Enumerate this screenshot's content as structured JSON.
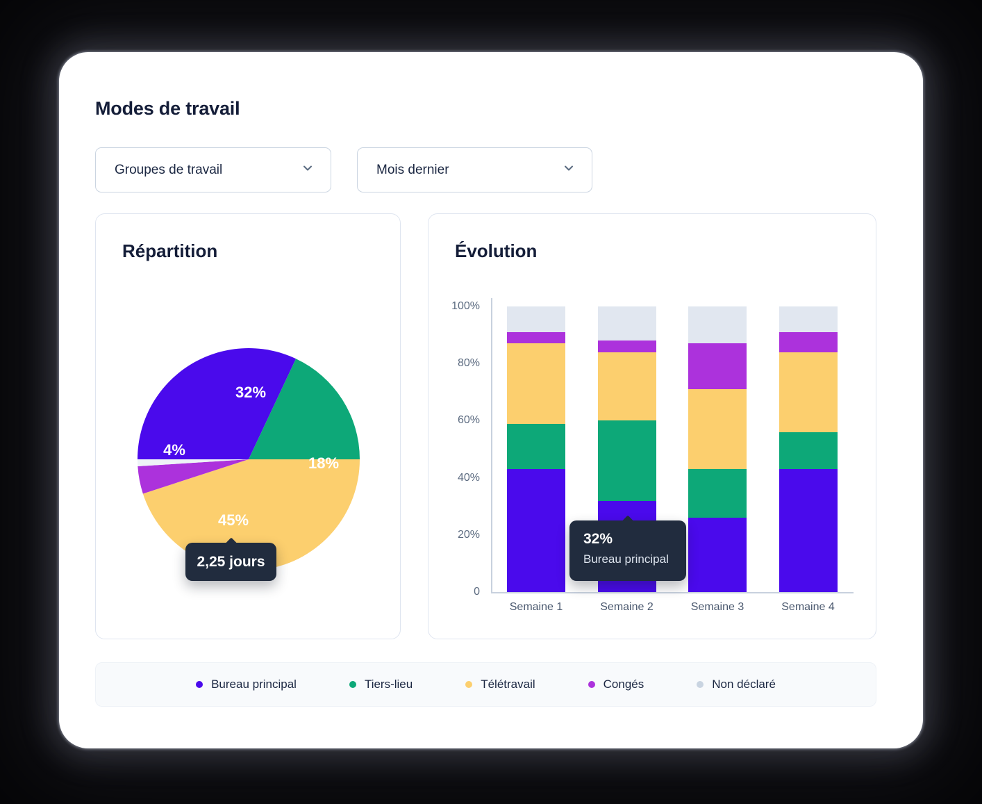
{
  "page": {
    "title": "Modes de travail"
  },
  "filters": {
    "group": {
      "value": "Groupes de travail"
    },
    "period": {
      "value": "Mois dernier"
    }
  },
  "colors": {
    "bureau_principal": "#4A0AEC",
    "tiers_lieu": "#0DA878",
    "teletravail": "#FCCF6E",
    "conges": "#AC32DC",
    "non_declare_bar": "#E1E7F0",
    "non_declare_pie": "#EEF3F7",
    "non_declare_dot": "#C9D4E1",
    "tooltip_bg": "#212C3E",
    "axis_text": "#5C6B80",
    "heading_text": "#141D38",
    "window_bg": "#FFFFFF",
    "page_bg": "#060608"
  },
  "chart_data": [
    {
      "type": "pie",
      "title": "Répartition",
      "labels": [
        "Bureau principal",
        "Tiers-lieu",
        "Télétravail",
        "Congés",
        "Non déclaré"
      ],
      "values": [
        32,
        18,
        45,
        4,
        1
      ],
      "display_labels": [
        "32%",
        "18%",
        "45%",
        "4%",
        ""
      ],
      "colors": [
        "#4A0AEC",
        "#0DA878",
        "#FCCF6E",
        "#AC32DC",
        "#EEF3F7"
      ],
      "start_angle_deg": 270,
      "direction": "clockwise",
      "tooltip": {
        "text": "2,25 jours"
      }
    },
    {
      "type": "bar",
      "stacked": true,
      "title": "Évolution",
      "categories": [
        "Semaine 1",
        "Semaine 2",
        "Semaine 3",
        "Semaine 4"
      ],
      "series": [
        {
          "name": "Bureau principal",
          "color": "#4A0AEC",
          "values": [
            43,
            32,
            26,
            43
          ]
        },
        {
          "name": "Tiers-lieu",
          "color": "#0DA878",
          "values": [
            16,
            28,
            17,
            13
          ]
        },
        {
          "name": "Télétravail",
          "color": "#FCCF6E",
          "values": [
            28,
            24,
            28,
            28
          ]
        },
        {
          "name": "Congés",
          "color": "#AC32DC",
          "values": [
            4,
            4,
            16,
            7
          ]
        },
        {
          "name": "Non déclaré",
          "color": "#E1E7F0",
          "values": [
            9,
            12,
            13,
            9
          ]
        }
      ],
      "yticks": [
        {
          "label": "0",
          "value": 0
        },
        {
          "label": "20%",
          "value": 20
        },
        {
          "label": "40%",
          "value": 40
        },
        {
          "label": "60%",
          "value": 60
        },
        {
          "label": "80%",
          "value": 80
        },
        {
          "label": "100%",
          "value": 100
        }
      ],
      "ylim": [
        0,
        100
      ],
      "grid": false,
      "tooltip": {
        "value": "32%",
        "label": "Bureau principal"
      }
    }
  ],
  "legend": {
    "items": [
      {
        "label": "Bureau principal",
        "color": "#4A0AEC"
      },
      {
        "label": "Tiers-lieu",
        "color": "#0DA878"
      },
      {
        "label": "Télétravail",
        "color": "#FCCF6E"
      },
      {
        "label": "Congés",
        "color": "#AC32DC"
      },
      {
        "label": "Non déclaré",
        "color": "#C9D4E1"
      }
    ]
  }
}
